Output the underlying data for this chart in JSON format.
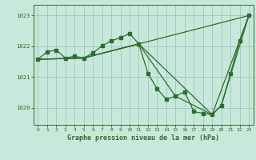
{
  "title": "Graphe pression niveau de la mer (hPa)",
  "background_color": "#c8e8dc",
  "grid_color": "#a0ccc0",
  "line_color": "#2d6e2d",
  "x_ticks": [
    0,
    1,
    2,
    3,
    4,
    5,
    6,
    7,
    8,
    9,
    10,
    11,
    12,
    13,
    14,
    15,
    16,
    17,
    18,
    19,
    20,
    21,
    22,
    23
  ],
  "ylim": [
    1019.45,
    1023.35
  ],
  "xlim": [
    -0.5,
    23.5
  ],
  "yticks": [
    1020,
    1021,
    1022,
    1023
  ],
  "series1_x": [
    0,
    1,
    2,
    3,
    4,
    5,
    6,
    7,
    8,
    9,
    10,
    11,
    12,
    13,
    14,
    15,
    16,
    17,
    18,
    19,
    20,
    21,
    22,
    23
  ],
  "series1_y": [
    1021.58,
    1021.82,
    1021.88,
    1021.62,
    1021.68,
    1021.62,
    1021.78,
    1022.02,
    1022.18,
    1022.28,
    1022.42,
    1022.08,
    1021.12,
    1020.62,
    1020.28,
    1020.38,
    1020.52,
    1019.88,
    1019.82,
    1019.78,
    1020.08,
    1021.12,
    1022.18,
    1023.0
  ],
  "series2_x": [
    0,
    5,
    11,
    23
  ],
  "series2_y": [
    1021.58,
    1021.62,
    1022.08,
    1023.0
  ],
  "series3_x": [
    0,
    5,
    11,
    19,
    23
  ],
  "series3_y": [
    1021.58,
    1021.62,
    1022.08,
    1019.78,
    1023.0
  ],
  "series4_x": [
    0,
    5,
    11,
    15,
    19,
    20,
    23
  ],
  "series4_y": [
    1021.58,
    1021.62,
    1022.08,
    1020.38,
    1019.78,
    1020.08,
    1023.0
  ]
}
